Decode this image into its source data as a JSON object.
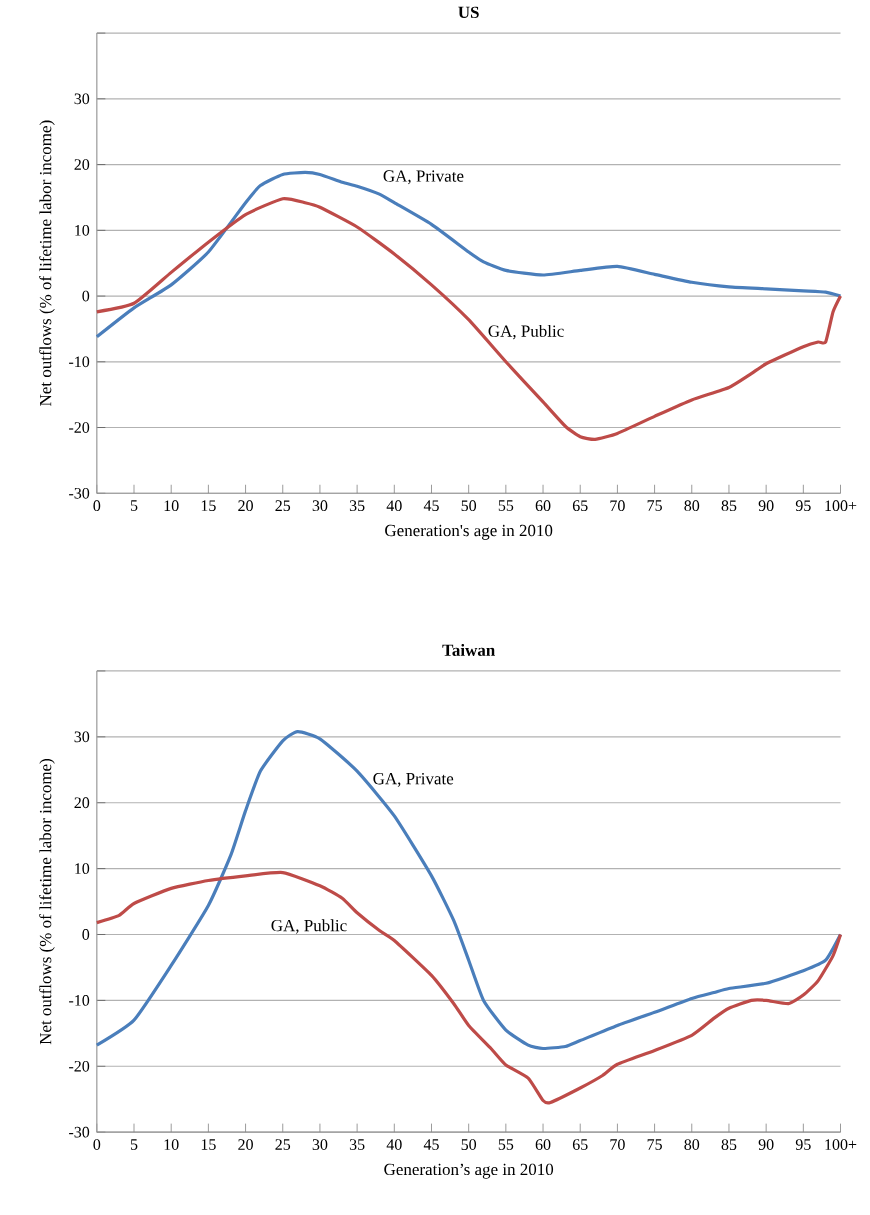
{
  "chart_data": [
    {
      "type": "line",
      "title": "US",
      "xlabel": "Generation's age in 2010",
      "ylabel": "Net outflows (% of lifetime labor income)",
      "xlim": [
        0,
        100
      ],
      "ylim": [
        -30,
        40
      ],
      "xticks": [
        0,
        5,
        10,
        15,
        20,
        25,
        30,
        35,
        40,
        45,
        50,
        55,
        60,
        65,
        70,
        75,
        80,
        85,
        90,
        95,
        {
          "value": 100,
          "label": "100+"
        }
      ],
      "yticks": [
        -30,
        -20,
        -10,
        0,
        10,
        20,
        30,
        {
          "value": 40,
          "label": null
        }
      ],
      "grid": "y",
      "series": [
        {
          "name": "GA, Private",
          "color": "#4a7ebb",
          "x": [
            0,
            5,
            10,
            15,
            20,
            22,
            25,
            28,
            30,
            33,
            35,
            38,
            40,
            45,
            50,
            52,
            55,
            60,
            65,
            70,
            75,
            80,
            85,
            90,
            95,
            98,
            100
          ],
          "values": [
            -6.2,
            -1.8,
            1.7,
            6.7,
            14.2,
            16.8,
            18.5,
            18.8,
            18.5,
            17.3,
            16.7,
            15.5,
            14.2,
            10.9,
            6.7,
            5.2,
            3.9,
            3.2,
            3.9,
            4.5,
            3.3,
            2.1,
            1.4,
            1.1,
            0.8,
            0.6,
            0
          ]
        },
        {
          "name": "GA, Public",
          "color": "#be4b48",
          "x": [
            0,
            5,
            10,
            15,
            20,
            25,
            28,
            30,
            35,
            40,
            45,
            50,
            55,
            60,
            63,
            65,
            67,
            70,
            75,
            80,
            85,
            88,
            90,
            95,
            97,
            98,
            99,
            100
          ],
          "values": [
            -2.4,
            -1.1,
            3.6,
            8.2,
            12.4,
            14.8,
            14.2,
            13.5,
            10.5,
            6.4,
            1.7,
            -3.6,
            -10,
            -16.1,
            -19.8,
            -21.4,
            -21.8,
            -20.9,
            -18.3,
            -15.8,
            -13.9,
            -11.8,
            -10.3,
            -7.7,
            -7,
            -7,
            -2.4,
            0
          ]
        }
      ]
    },
    {
      "type": "line",
      "title": "Taiwan",
      "xlabel": "Generation’s age in 2010",
      "ylabel": "Net outflows (% of lifetime labor income)",
      "xlim": [
        0,
        100
      ],
      "ylim": [
        -30,
        40
      ],
      "xticks": [
        0,
        5,
        10,
        15,
        20,
        25,
        30,
        35,
        40,
        45,
        50,
        55,
        60,
        65,
        70,
        75,
        80,
        85,
        90,
        95,
        {
          "value": 100,
          "label": "100+"
        }
      ],
      "yticks": [
        -30,
        -20,
        -10,
        0,
        10,
        20,
        30,
        {
          "value": 40,
          "label": null
        }
      ],
      "grid": "y",
      "series": [
        {
          "name": "GA, Private",
          "color": "#4a7ebb",
          "x": [
            0,
            5,
            10,
            15,
            18,
            20,
            22,
            25,
            27,
            30,
            35,
            40,
            45,
            48,
            50,
            52,
            55,
            58,
            60,
            63,
            65,
            70,
            75,
            80,
            83,
            85,
            90,
            95,
            98,
            100
          ],
          "values": [
            -16.8,
            -13,
            -4.7,
            4.4,
            12,
            18.8,
            24.8,
            29.4,
            30.8,
            29.7,
            24.8,
            18,
            8.9,
            2.1,
            -3.9,
            -10,
            -14.5,
            -16.8,
            -17.3,
            -17,
            -16.1,
            -13.8,
            -11.8,
            -9.7,
            -8.8,
            -8.2,
            -7.4,
            -5.5,
            -3.9,
            0
          ]
        },
        {
          "name": "GA, Public",
          "color": "#be4b48",
          "x": [
            0,
            3,
            5,
            10,
            15,
            20,
            25,
            30,
            33,
            35,
            38,
            40,
            45,
            48,
            50,
            53,
            55,
            58,
            60,
            61,
            65,
            68,
            70,
            75,
            80,
            83,
            85,
            88,
            90,
            93,
            95,
            97,
            99,
            100
          ],
          "values": [
            1.8,
            2.9,
            4.7,
            7,
            8.2,
            8.9,
            9.4,
            7.4,
            5.5,
            3.3,
            0.6,
            -0.9,
            -6.2,
            -10.5,
            -13.8,
            -17.3,
            -19.8,
            -21.8,
            -25.2,
            -25.5,
            -23.3,
            -21.4,
            -19.7,
            -17.6,
            -15.3,
            -12.7,
            -11.2,
            -10,
            -10,
            -10.5,
            -9.2,
            -7,
            -3.2,
            0
          ]
        }
      ]
    }
  ]
}
